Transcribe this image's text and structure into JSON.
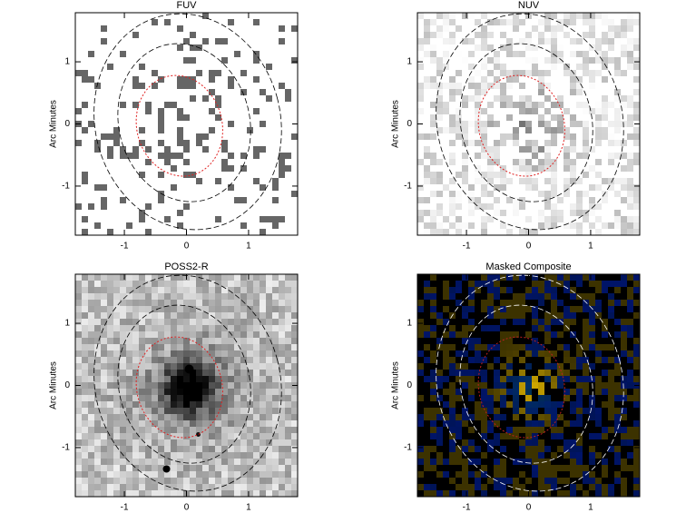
{
  "chart_data": [
    {
      "type": "image",
      "title": "FUV",
      "ylabel": "Arc Minutes",
      "xlim": [
        -1.79,
        1.79
      ],
      "ylim": [
        -1.79,
        1.79
      ],
      "xticks": [
        -1,
        0,
        1
      ],
      "yticks": [
        -1,
        0,
        1
      ],
      "background": "#ffffff",
      "contour_color": "#000000",
      "inner_contour_color": "#e02020"
    },
    {
      "type": "image",
      "title": "NUV",
      "ylabel": "Arc Minutes",
      "xlim": [
        -1.79,
        1.79
      ],
      "ylim": [
        -1.79,
        1.79
      ],
      "xticks": [
        -1,
        0,
        1
      ],
      "yticks": [
        -1,
        0,
        1
      ],
      "background": "#ffffff",
      "contour_color": "#000000",
      "inner_contour_color": "#e02020"
    },
    {
      "type": "image",
      "title": "POSS2-R",
      "ylabel": "Arc Minutes",
      "xlim": [
        -1.79,
        1.79
      ],
      "ylim": [
        -1.79,
        1.79
      ],
      "xticks": [
        -1,
        0,
        1
      ],
      "yticks": [
        -1,
        0,
        1
      ],
      "background": "#a8a8a8",
      "contour_color": "#000000",
      "inner_contour_color": "#e02020"
    },
    {
      "type": "image",
      "title": "Masked Composite",
      "ylabel": "Arc Minutes",
      "xlim": [
        -1.79,
        1.79
      ],
      "ylim": [
        -1.79,
        1.79
      ],
      "xticks": [
        -1,
        0,
        1
      ],
      "yticks": [
        -1,
        0,
        1
      ],
      "background": "#000000",
      "contour_color": "#ffffff",
      "inner_contour_color": "#c02020"
    }
  ]
}
